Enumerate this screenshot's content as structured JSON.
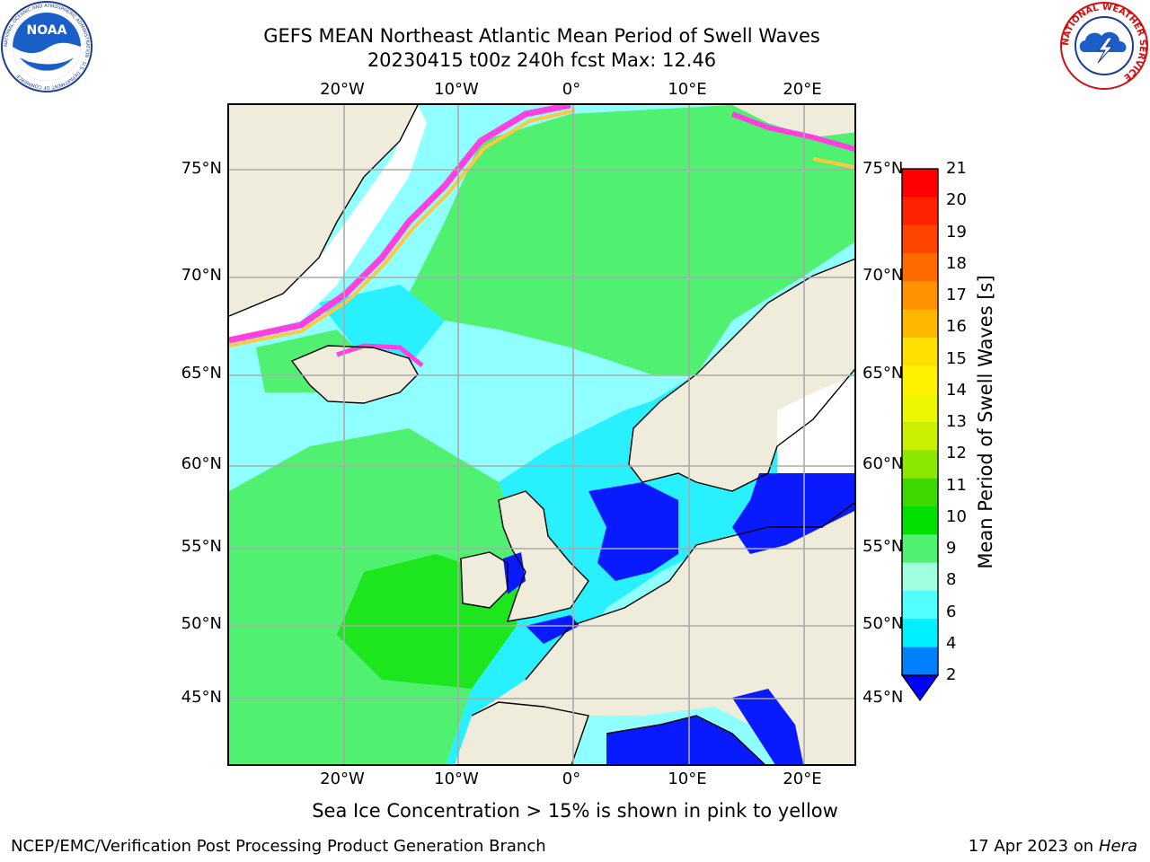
{
  "title": {
    "line1": "GEFS MEAN Northeast Atlantic Mean Period of Swell Waves",
    "line2": "20230415 t00z 240h fcst   Max: 12.46"
  },
  "logos": {
    "noaa_text": "NOAA",
    "noaa_ring": "NATIONAL OCEANIC AND ATMOSPHERIC ADMINISTRATION · U.S. DEPARTMENT OF COMMERCE",
    "nws_ring": "NATIONAL WEATHER SERVICE"
  },
  "axes": {
    "lon_labels": [
      "20°W",
      "10°W",
      "0°",
      "10°E",
      "20°E"
    ],
    "lat_labels": [
      "75°N",
      "70°N",
      "65°N",
      "60°N",
      "55°N",
      "50°N",
      "45°N"
    ]
  },
  "colorbar": {
    "label": "Mean Period of Swell Waves [s]",
    "ticks": [
      "21",
      "20",
      "19",
      "18",
      "17",
      "16",
      "15",
      "14",
      "13",
      "12",
      "11",
      "10",
      "9",
      "8",
      "6",
      "4",
      "2"
    ],
    "colors": [
      "#ff0000",
      "#ff2200",
      "#ff4400",
      "#ff6a00",
      "#ff9200",
      "#ffb800",
      "#ffe000",
      "#fff200",
      "#ecf700",
      "#c8f000",
      "#8ce800",
      "#3cd800",
      "#00e000",
      "#50f070",
      "#a0ffe0",
      "#50ffff",
      "#00f0ff",
      "#0080ff",
      "#0000ff"
    ]
  },
  "map_colors": {
    "land": "#efecdc",
    "ice_pink": "#ff40e0",
    "ice_yellow": "#ffc840",
    "sea_deep_blue": "#0a1aff",
    "sea_cyan": "#28f0ff",
    "sea_light_cyan": "#90ffff",
    "sea_green": "#50f070",
    "sea_bright_green": "#1ee61e",
    "gridline": "#aaaaaa"
  },
  "note": "Sea Ice Concentration > 15% is shown in pink to yellow",
  "footer": {
    "left": "NCEP/EMC/Verification Post Processing Product Generation Branch",
    "right_date": "17 Apr 2023 on",
    "right_host": "Hera"
  }
}
